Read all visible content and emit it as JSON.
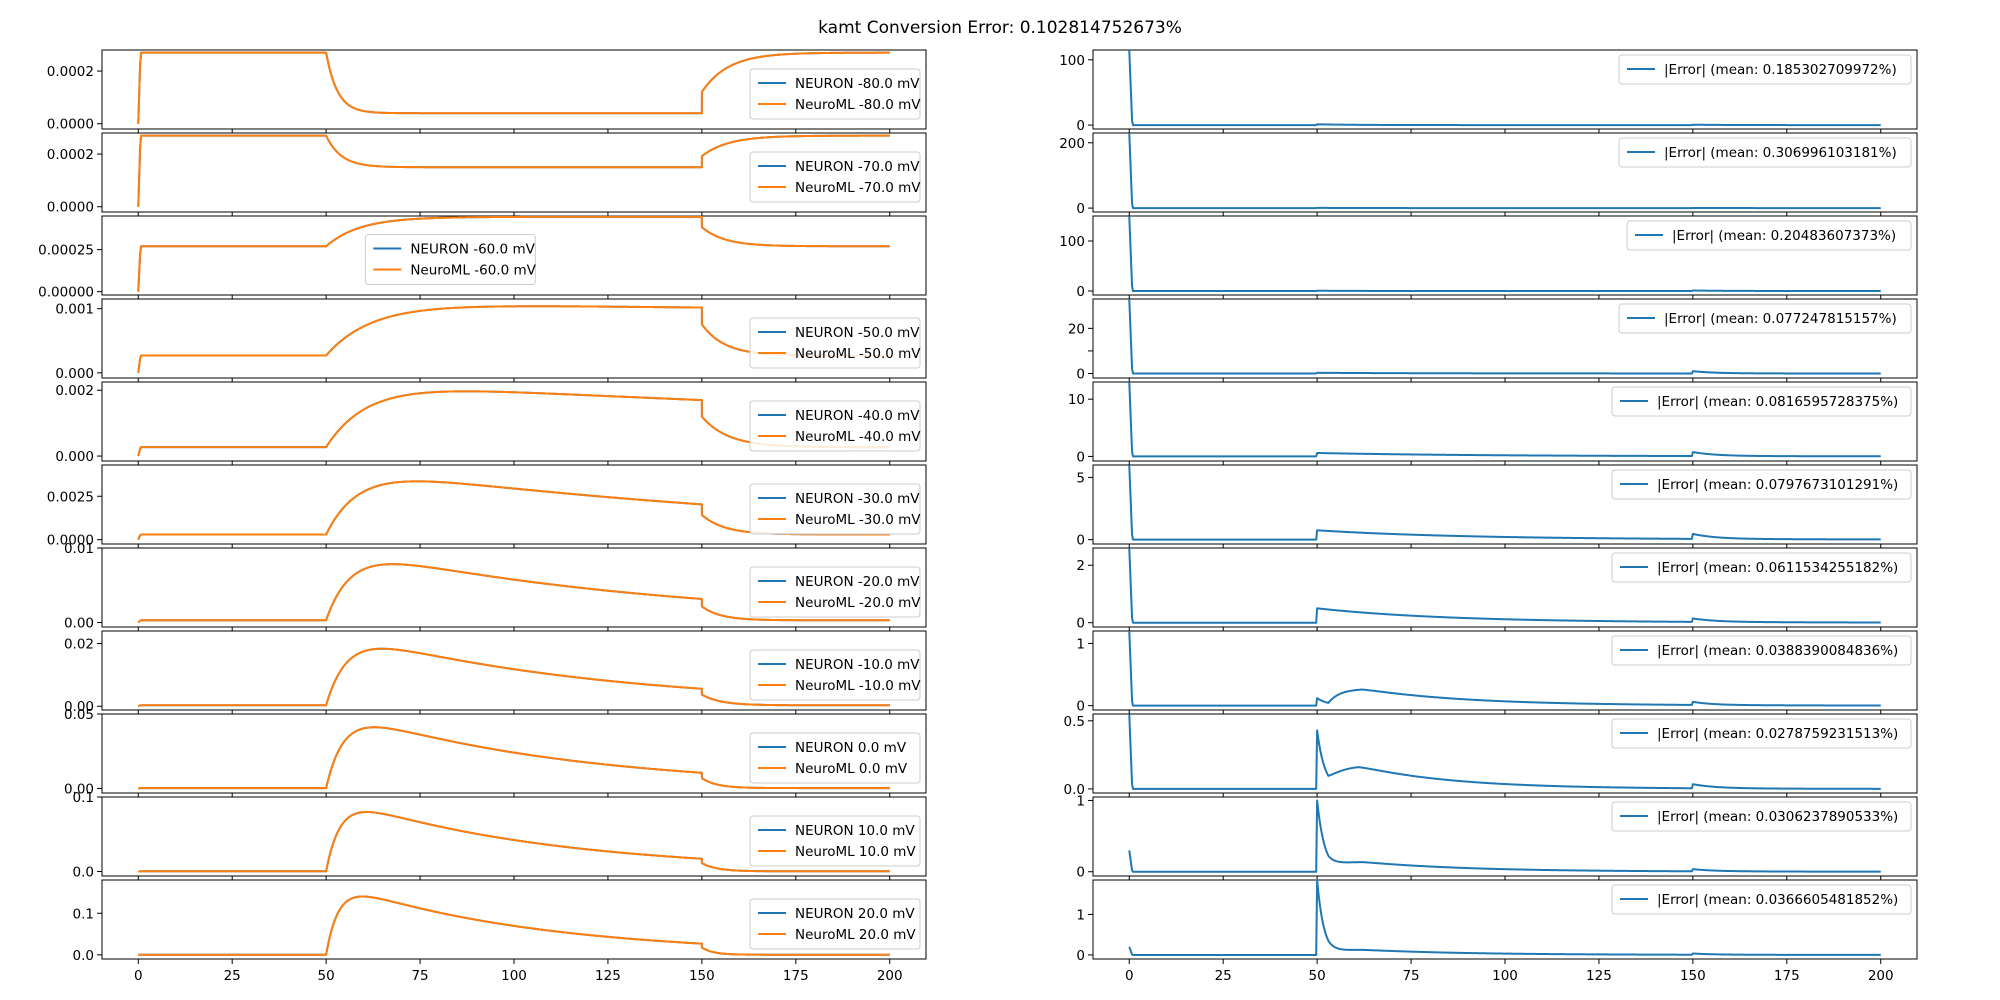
{
  "figure_title": "kamt Conversion Error: 0.102814752673%",
  "chart_data": {
    "type": "line",
    "layout": "11 rows x 2 columns; left column overlays NEURON and NeuroML traces, right column shows absolute error",
    "x": {
      "min": 0,
      "max": 200,
      "ticks": [
        0,
        25,
        50,
        75,
        100,
        125,
        150,
        175,
        200
      ],
      "tick_labels": [
        "0",
        "25",
        "50",
        "75",
        "100",
        "125",
        "150",
        "175",
        "200"
      ],
      "xlabel": ""
    },
    "colors": {
      "neuron": "#1f77b4",
      "neuroml": "#ff7f0e",
      "error": "#1f77b4"
    },
    "pulse": {
      "start": 50,
      "end": 150
    },
    "left": [
      {
        "ylim": [
          -2e-05,
          0.00028
        ],
        "yticks": [
          0,
          0.0002
        ],
        "ytick_labels": [
          "0.0000",
          "0.0002"
        ],
        "legend_loc": "right",
        "series": [
          {
            "name": "NEURON -80.0 mV",
            "params": {
              "rest": 0.00027,
              "peak": 4e-05,
              "tau": 3,
              "decay": 0,
              "tau_off": 7
            }
          },
          {
            "name": "NeuroML -80.0 mV",
            "params": {
              "rest": 0.00027,
              "peak": 4e-05,
              "tau": 3,
              "decay": 0,
              "tau_off": 7
            }
          }
        ]
      },
      {
        "ylim": [
          -2e-05,
          0.00028
        ],
        "yticks": [
          0,
          0.0002
        ],
        "ytick_labels": [
          "0.0000",
          "0.0002"
        ],
        "legend_loc": "right",
        "series": [
          {
            "name": "NEURON -70.0 mV",
            "params": {
              "rest": 0.00027,
              "peak": 0.00015,
              "tau": 4,
              "decay": 0,
              "tau_off": 7
            }
          },
          {
            "name": "NeuroML -70.0 mV",
            "params": {
              "rest": 0.00027,
              "peak": 0.00015,
              "tau": 4,
              "decay": 0,
              "tau_off": 7
            }
          }
        ]
      },
      {
        "ylim": [
          -2e-05,
          0.00045
        ],
        "yticks": [
          0,
          0.00025
        ],
        "ytick_labels": [
          "0.00000",
          "0.00025"
        ],
        "legend_loc": "center",
        "series": [
          {
            "name": "NEURON -60.0 mV",
            "params": {
              "rest": 0.00027,
              "peak": 0.000445,
              "tau": 9,
              "decay": 0,
              "tau_off": 6
            }
          },
          {
            "name": "NeuroML -60.0 mV",
            "params": {
              "rest": 0.00027,
              "peak": 0.000445,
              "tau": 9,
              "decay": 0,
              "tau_off": 6
            }
          }
        ]
      },
      {
        "ylim": [
          -8e-05,
          0.00115
        ],
        "yticks": [
          0,
          0.001
        ],
        "ytick_labels": [
          "0.000",
          "0.001"
        ],
        "legend_loc": "right",
        "series": [
          {
            "name": "NEURON -50.0 mV",
            "params": {
              "rest": 0.00027,
              "peak": 0.00108,
              "tau": 12,
              "decay": 0.0006,
              "tau_off": 6
            }
          },
          {
            "name": "NeuroML -50.0 mV",
            "params": {
              "rest": 0.00027,
              "peak": 0.00108,
              "tau": 12,
              "decay": 0.0006,
              "tau_off": 6
            }
          }
        ]
      },
      {
        "ylim": [
          -0.00015,
          0.00225
        ],
        "yticks": [
          0,
          0.002
        ],
        "ytick_labels": [
          "0.000",
          "0.002"
        ],
        "legend_loc": "right",
        "series": [
          {
            "name": "NEURON -40.0 mV",
            "params": {
              "rest": 0.00027,
              "peak": 0.00225,
              "tau": 11,
              "decay": 0.0028,
              "tau_off": 7
            }
          },
          {
            "name": "NeuroML -40.0 mV",
            "params": {
              "rest": 0.00027,
              "peak": 0.00225,
              "tau": 11,
              "decay": 0.0028,
              "tau_off": 7
            }
          }
        ]
      },
      {
        "ylim": [
          -0.00025,
          0.0043
        ],
        "yticks": [
          0,
          0.0025
        ],
        "ytick_labels": [
          "0.0000",
          "0.0025"
        ],
        "legend_loc": "right",
        "series": [
          {
            "name": "NEURON -30.0 mV",
            "params": {
              "rest": 0.0003,
              "peak": 0.0043,
              "tau": 9,
              "decay": 0.0075,
              "tau_off": 6
            }
          },
          {
            "name": "NeuroML -30.0 mV",
            "params": {
              "rest": 0.0003,
              "peak": 0.0043,
              "tau": 9,
              "decay": 0.0075,
              "tau_off": 6
            }
          }
        ]
      },
      {
        "ylim": [
          -0.0006,
          0.01
        ],
        "yticks": [
          0,
          0.01
        ],
        "ytick_labels": [
          "0.00",
          "0.01"
        ],
        "legend_loc": "right",
        "series": [
          {
            "name": "NEURON -20.0 mV",
            "params": {
              "rest": 0.0003,
              "peak": 0.0105,
              "tau": 7,
              "decay": 0.012,
              "tau_off": 5
            }
          },
          {
            "name": "NeuroML -20.0 mV",
            "params": {
              "rest": 0.0003,
              "peak": 0.0105,
              "tau": 7,
              "decay": 0.012,
              "tau_off": 5
            }
          }
        ]
      },
      {
        "ylim": [
          -0.0012,
          0.024
        ],
        "yticks": [
          0,
          0.02
        ],
        "ytick_labels": [
          "0.00",
          "0.02"
        ],
        "legend_loc": "right",
        "series": [
          {
            "name": "NEURON -10.0 mV",
            "params": {
              "rest": 0.0003,
              "peak": 0.025,
              "tau": 6,
              "decay": 0.015,
              "tau_off": 5
            }
          },
          {
            "name": "NeuroML -10.0 mV",
            "params": {
              "rest": 0.0003,
              "peak": 0.025,
              "tau": 6,
              "decay": 0.015,
              "tau_off": 5
            }
          }
        ]
      },
      {
        "ylim": [
          -0.003,
          0.05
        ],
        "yticks": [
          0,
          0.05
        ],
        "ytick_labels": [
          "0.00",
          "0.05"
        ],
        "legend_loc": "right",
        "series": [
          {
            "name": "NEURON 0.0 mV",
            "params": {
              "rest": 0.0003,
              "peak": 0.055,
              "tau": 5,
              "decay": 0.0165,
              "tau_off": 4
            }
          },
          {
            "name": "NeuroML 0.0 mV",
            "params": {
              "rest": 0.0003,
              "peak": 0.055,
              "tau": 5,
              "decay": 0.0165,
              "tau_off": 4
            }
          }
        ]
      },
      {
        "ylim": [
          -0.006,
          0.1
        ],
        "yticks": [
          0,
          0.1
        ],
        "ytick_labels": [
          "0.0",
          "0.1"
        ],
        "legend_loc": "right",
        "series": [
          {
            "name": "NEURON 10.0 mV",
            "params": {
              "rest": 0.0003,
              "peak": 0.104,
              "tau": 4,
              "decay": 0.018,
              "tau_off": 4
            }
          },
          {
            "name": "NeuroML 10.0 mV",
            "params": {
              "rest": 0.0003,
              "peak": 0.104,
              "tau": 4,
              "decay": 0.018,
              "tau_off": 4
            }
          }
        ]
      },
      {
        "ylim": [
          -0.01,
          0.18
        ],
        "yticks": [
          0,
          0.1
        ],
        "ytick_labels": [
          "0.0",
          "0.1"
        ],
        "legend_loc": "right",
        "series": [
          {
            "name": "NEURON 20.0 mV",
            "params": {
              "rest": 0.0003,
              "peak": 0.18,
              "tau": 3.5,
              "decay": 0.019,
              "tau_off": 3
            }
          },
          {
            "name": "NeuroML 20.0 mV",
            "params": {
              "rest": 0.0003,
              "peak": 0.18,
              "tau": 3.5,
              "decay": 0.019,
              "tau_off": 3
            }
          }
        ]
      }
    ],
    "right": [
      {
        "ylim": [
          -6,
          115
        ],
        "yticks": [
          0,
          100
        ],
        "ytick_labels": [
          "0",
          "100"
        ],
        "legend": "|Error| (mean: 0.185302709972%)",
        "params": {
          "spike0": 115,
          "bump50": 1.2,
          "bump_tau50": 10,
          "bump150": 0.6,
          "bump_tau150": 8
        }
      },
      {
        "ylim": [
          -12,
          230
        ],
        "yticks": [
          0,
          200
        ],
        "ytick_labels": [
          "0",
          "200"
        ],
        "legend": "|Error| (mean: 0.306996103181%)",
        "params": {
          "spike0": 230,
          "bump50": 0.6,
          "bump_tau50": 10,
          "bump150": 0.4,
          "bump_tau150": 8
        }
      },
      {
        "ylim": [
          -8,
          150
        ],
        "yticks": [
          0,
          100
        ],
        "ytick_labels": [
          "0",
          "100"
        ],
        "legend": "|Error| (mean: 0.20483607373%)",
        "params": {
          "spike0": 150,
          "bump50": 0.5,
          "bump_tau50": 10,
          "bump150": 1.0,
          "bump_tau150": 8
        }
      },
      {
        "ylim": [
          -2,
          33
        ],
        "yticks": [
          0,
          10,
          20
        ],
        "ytick_labels": [
          "0",
          "",
          "20"
        ],
        "legend": "|Error| (mean: 0.077247815157%)",
        "params": {
          "spike0": 33,
          "bump50": 0.3,
          "bump_tau50": 30,
          "bump150": 1.0,
          "bump_tau150": 6
        }
      },
      {
        "ylim": [
          -0.8,
          13
        ],
        "yticks": [
          0,
          10
        ],
        "ytick_labels": [
          "0",
          "10"
        ],
        "legend": "|Error| (mean: 0.0816595728375%)",
        "params": {
          "spike0": 13,
          "bump50": 0.6,
          "bump_tau50": 45,
          "bump150": 0.7,
          "bump_tau150": 6
        }
      },
      {
        "ylim": [
          -0.35,
          6
        ],
        "yticks": [
          0,
          5
        ],
        "ytick_labels": [
          "0",
          "5"
        ],
        "legend": "|Error| (mean: 0.0797673101291%)",
        "params": {
          "spike0": 6,
          "bump50": 0.75,
          "bump_tau50": 40,
          "bump150": 0.4,
          "bump_tau150": 6
        }
      },
      {
        "ylim": [
          -0.15,
          2.6
        ],
        "yticks": [
          0,
          2
        ],
        "ytick_labels": [
          "0",
          "2"
        ],
        "legend": "|Error| (mean: 0.0611534255182%)",
        "params": {
          "spike0": 2.6,
          "bump50": 0.5,
          "bump_tau50": 35,
          "bump150": 0.12,
          "bump_tau150": 6
        }
      },
      {
        "ylim": [
          -0.07,
          1.2
        ],
        "yticks": [
          0,
          1
        ],
        "ytick_labels": [
          "0",
          "1"
        ],
        "legend": "|Error| (mean: 0.0388390084836%)",
        "params": {
          "spike0": 1.2,
          "bump50": 0.12,
          "bump_tau50": 3,
          "hump": 0.27,
          "hump_center": 62,
          "hump_tau": 28,
          "bump150": 0.05,
          "bump_tau150": 5
        }
      },
      {
        "ylim": [
          -0.03,
          0.55
        ],
        "yticks": [
          0,
          0.5
        ],
        "ytick_labels": [
          "0.0",
          "0.5"
        ],
        "legend": "|Error| (mean: 0.0278759231513%)",
        "params": {
          "spike0": 0.55,
          "bump50": 0.43,
          "bump_tau50": 2,
          "hump": 0.17,
          "hump_center": 61,
          "hump_tau": 25,
          "bump150": 0.03,
          "bump_tau150": 6
        }
      },
      {
        "ylim": [
          -0.06,
          1.05
        ],
        "yticks": [
          0,
          1
        ],
        "ytick_labels": [
          "0",
          "1"
        ],
        "legend": "|Error| (mean: 0.0306237890533%)",
        "params": {
          "spike0": 0.3,
          "bump50": 1.0,
          "bump_tau50": 2,
          "hump": 0.14,
          "hump_center": 62,
          "hump_tau": 28,
          "bump150": 0.03,
          "bump_tau150": 6
        }
      },
      {
        "ylim": [
          -0.1,
          1.85
        ],
        "yticks": [
          0,
          1
        ],
        "ytick_labels": [
          "0",
          "1"
        ],
        "legend": "|Error| (mean: 0.0366605481852%)",
        "params": {
          "spike0": 0.2,
          "bump50": 1.85,
          "bump_tau50": 1.8,
          "hump": 0.13,
          "hump_center": 62,
          "hump_tau": 28,
          "bump150": 0.03,
          "bump_tau150": 6
        }
      }
    ]
  }
}
